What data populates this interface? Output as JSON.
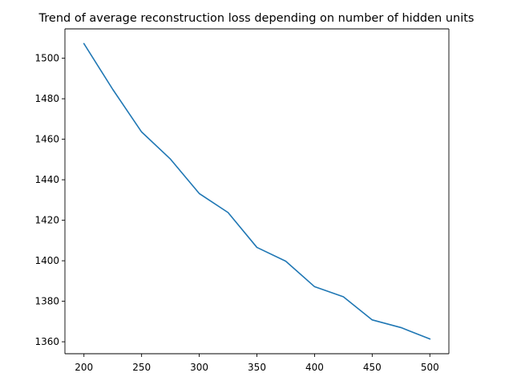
{
  "chart_data": {
    "type": "line",
    "title": "Trend of average reconstruction loss depending on number of hidden units",
    "xlabel": "",
    "ylabel": "",
    "x": [
      200,
      225,
      250,
      275,
      300,
      325,
      350,
      375,
      400,
      425,
      450,
      475,
      500
    ],
    "series": [
      {
        "name": "",
        "color": "#1f77b4",
        "values": [
          1507.2,
          1484.6,
          1463.6,
          1450.2,
          1433.2,
          1423.8,
          1406.6,
          1399.8,
          1387.2,
          1382.2,
          1370.8,
          1367.0,
          1361.4
        ]
      }
    ],
    "xlim": [
      183.5,
      516.5
    ],
    "ylim": [
      1354.1,
      1514.5
    ],
    "xticks": [
      200,
      250,
      300,
      350,
      400,
      450,
      500
    ],
    "yticks": [
      1360,
      1380,
      1400,
      1420,
      1440,
      1460,
      1480,
      1500
    ],
    "grid": false,
    "legend": "none"
  }
}
